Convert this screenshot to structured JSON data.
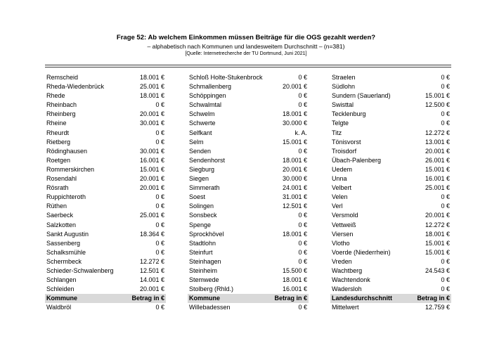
{
  "header": {
    "title": "Frage 52: Ab welchem Einkommen müssen Beiträge für die OGS gezahlt werden?",
    "subtitle": "– alphabetisch nach Kommunen und landesweitem Durchschnitt – (n=381)",
    "source": "[Quelle: Internetrecherche der TU Dortmund, Juni 2021]"
  },
  "colors": {
    "header_row_bg": "#d9d9d9",
    "rule": "#3a3a3a",
    "text": "#000000",
    "page_bg": "#ffffff"
  },
  "table": {
    "columns": [
      {
        "header": {
          "label": "Kommune",
          "value_label": "Betrag in €"
        },
        "rows": [
          {
            "name": "Remscheid",
            "value": "18.001 €"
          },
          {
            "name": "Rheda-Wiedenbrück",
            "value": "25.001 €"
          },
          {
            "name": "Rhede",
            "value": "18.001 €"
          },
          {
            "name": "Rheinbach",
            "value": "0 €"
          },
          {
            "name": "Rheinberg",
            "value": "20.001 €"
          },
          {
            "name": "Rheine",
            "value": "30.001 €"
          },
          {
            "name": "Rheurdt",
            "value": "0 €"
          },
          {
            "name": "Rietberg",
            "value": "0 €"
          },
          {
            "name": "Rödinghausen",
            "value": "30.001 €"
          },
          {
            "name": "Roetgen",
            "value": "16.001 €"
          },
          {
            "name": "Rommerskirchen",
            "value": "15.001 €"
          },
          {
            "name": "Rosendahl",
            "value": "20.001 €"
          },
          {
            "name": "Rösrath",
            "value": "20.001 €"
          },
          {
            "name": "Ruppichteroth",
            "value": "0 €"
          },
          {
            "name": "Rüthen",
            "value": "0 €"
          },
          {
            "name": "Saerbeck",
            "value": "25.001 €"
          },
          {
            "name": "Salzkotten",
            "value": "0 €"
          },
          {
            "name": "Sankt Augustin",
            "value": "18.364 €"
          },
          {
            "name": "Sassenberg",
            "value": "0 €"
          },
          {
            "name": "Schalksmühle",
            "value": "0 €"
          },
          {
            "name": "Schermbeck",
            "value": "12.272 €"
          },
          {
            "name": "Schieder-Schwalenberg",
            "value": "12.501 €"
          },
          {
            "name": "Schlangen",
            "value": "14.001 €"
          },
          {
            "name": "Schleiden",
            "value": "20.001 €"
          }
        ],
        "last_row": {
          "name": "Waldbröl",
          "value": "0 €"
        }
      },
      {
        "header": {
          "label": "Kommune",
          "value_label": "Betrag in €"
        },
        "rows": [
          {
            "name": "Schloß Holte-Stukenbrock",
            "value": "0 €"
          },
          {
            "name": "Schmallenberg",
            "value": "20.001 €"
          },
          {
            "name": "Schöppingen",
            "value": "0 €"
          },
          {
            "name": "Schwalmtal",
            "value": "0 €"
          },
          {
            "name": "Schwelm",
            "value": "18.001 €"
          },
          {
            "name": "Schwerte",
            "value": "30.000 €"
          },
          {
            "name": "Selfkant",
            "value": "k. A."
          },
          {
            "name": "Selm",
            "value": "15.001 €"
          },
          {
            "name": "Senden",
            "value": "0 €"
          },
          {
            "name": "Sendenhorst",
            "value": "18.001 €"
          },
          {
            "name": "Siegburg",
            "value": "20.001 €"
          },
          {
            "name": "Siegen",
            "value": "30.000 €"
          },
          {
            "name": "Simmerath",
            "value": "24.001 €"
          },
          {
            "name": "Soest",
            "value": "31.001 €"
          },
          {
            "name": "Solingen",
            "value": "12.501 €"
          },
          {
            "name": "Sonsbeck",
            "value": "0 €"
          },
          {
            "name": "Spenge",
            "value": "0 €"
          },
          {
            "name": "Sprockhövel",
            "value": "18.001 €"
          },
          {
            "name": "Stadtlohn",
            "value": "0 €"
          },
          {
            "name": "Steinfurt",
            "value": "0 €"
          },
          {
            "name": "Steinhagen",
            "value": "0 €"
          },
          {
            "name": "Steinheim",
            "value": "15.500 €"
          },
          {
            "name": "Stemwede",
            "value": "18.001 €"
          },
          {
            "name": "Stolberg (Rhld.)",
            "value": "16.001 €"
          }
        ],
        "last_row": {
          "name": "Willebadessen",
          "value": "0 €"
        }
      },
      {
        "header": {
          "label": "Landesdurchschnitt",
          "value_label": "Betrag in €"
        },
        "rows": [
          {
            "name": "Straelen",
            "value": "0 €"
          },
          {
            "name": "Südlohn",
            "value": "0 €"
          },
          {
            "name": "Sundern (Sauerland)",
            "value": "15.001 €"
          },
          {
            "name": "Swisttal",
            "value": "12.500 €"
          },
          {
            "name": "Tecklenburg",
            "value": "0 €"
          },
          {
            "name": "Telgte",
            "value": "0 €"
          },
          {
            "name": "Titz",
            "value": "12.272 €"
          },
          {
            "name": "Tönisvorst",
            "value": "13.001 €"
          },
          {
            "name": "Troisdorf",
            "value": "20.001 €"
          },
          {
            "name": "Übach-Palenberg",
            "value": "26.001 €"
          },
          {
            "name": "Uedem",
            "value": "15.001 €"
          },
          {
            "name": "Unna",
            "value": "16.001 €"
          },
          {
            "name": "Velbert",
            "value": "25.001 €"
          },
          {
            "name": "Velen",
            "value": "0 €"
          },
          {
            "name": "Verl",
            "value": "0 €"
          },
          {
            "name": "Versmold",
            "value": "20.001 €"
          },
          {
            "name": "Vettweiß",
            "value": "12.272 €"
          },
          {
            "name": "Viersen",
            "value": "18.001 €"
          },
          {
            "name": "Vlotho",
            "value": "15.001 €"
          },
          {
            "name": "Voerde (Niederrhein)",
            "value": "15.001 €"
          },
          {
            "name": "Vreden",
            "value": "0 €"
          },
          {
            "name": "Wachtberg",
            "value": "24.543 €"
          },
          {
            "name": "Wachtendonk",
            "value": "0 €"
          },
          {
            "name": "Wadersloh",
            "value": "0 €"
          }
        ],
        "last_row": {
          "name": "Mittelwert",
          "value": "12.759 €"
        }
      }
    ]
  }
}
